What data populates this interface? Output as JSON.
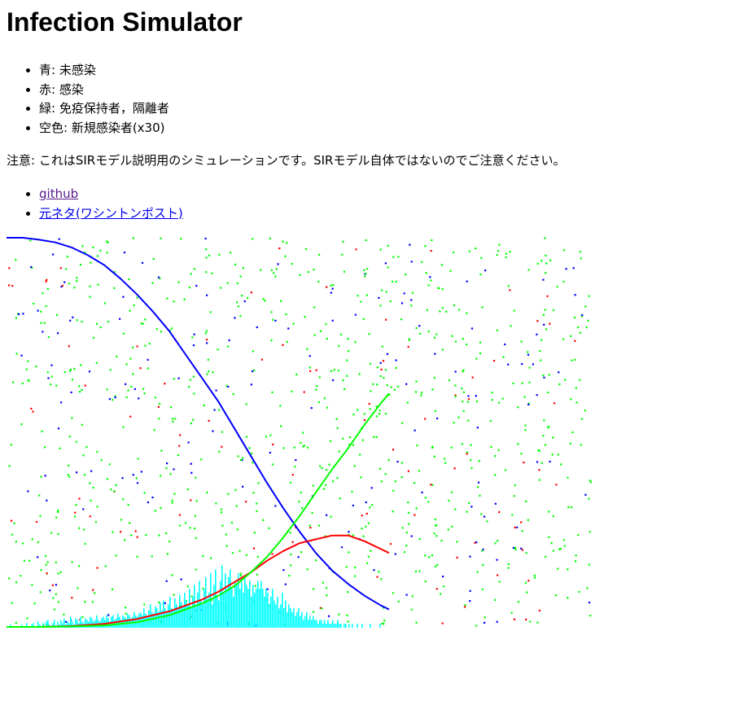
{
  "title": "Infection Simulator",
  "legend": [
    {
      "label": "青: 未感染",
      "color": "#0000ff"
    },
    {
      "label": "赤: 感染",
      "color": "#ff0000"
    },
    {
      "label": "緑: 免疫保持者，隔離者",
      "color": "#00ff00"
    },
    {
      "label": "空色: 新規感染者(x30)",
      "color": "#00ffff"
    }
  ],
  "note": "注意: これはSIRモデル説明用のシミュレーションです。SIRモデル自体ではないのでご注意ください。",
  "links": [
    {
      "label": "github"
    },
    {
      "label": "元ネタ(ワシントンポスト)"
    }
  ],
  "colors": {
    "uninfected": "#0000ff",
    "infected": "#ff0000",
    "recovered": "#00ff00",
    "new_infections": "#00ffff"
  },
  "chart_data": {
    "type": "line",
    "title": "",
    "xlabel": "",
    "ylabel": "",
    "ylim": [
      0,
      1
    ],
    "grid": false,
    "series": [
      {
        "key": "uninfected",
        "color": "#0000ff",
        "x": [
          0,
          20,
          40,
          60,
          80,
          100,
          120,
          140,
          160,
          180,
          200,
          220,
          240,
          260,
          280,
          300,
          320,
          340,
          360,
          380,
          400,
          420,
          440,
          460,
          470
        ],
        "y": [
          1.0,
          1.0,
          0.995,
          0.988,
          0.975,
          0.955,
          0.93,
          0.895,
          0.855,
          0.81,
          0.76,
          0.7,
          0.64,
          0.58,
          0.51,
          0.44,
          0.37,
          0.305,
          0.245,
          0.19,
          0.145,
          0.11,
          0.08,
          0.055,
          0.045
        ]
      },
      {
        "key": "infected",
        "color": "#ff0000",
        "x": [
          0,
          40,
          80,
          120,
          160,
          200,
          240,
          260,
          280,
          300,
          320,
          340,
          360,
          380,
          400,
          420,
          440,
          460,
          470
        ],
        "y": [
          0.0,
          0.0,
          0.002,
          0.008,
          0.02,
          0.04,
          0.07,
          0.09,
          0.115,
          0.14,
          0.17,
          0.195,
          0.215,
          0.225,
          0.235,
          0.235,
          0.22,
          0.2,
          0.19
        ]
      },
      {
        "key": "recovered",
        "color": "#00ff00",
        "x": [
          0,
          40,
          80,
          120,
          160,
          200,
          240,
          260,
          280,
          300,
          320,
          340,
          360,
          380,
          400,
          420,
          440,
          460,
          470
        ],
        "y": [
          0.0,
          0.0,
          0.001,
          0.004,
          0.012,
          0.03,
          0.06,
          0.08,
          0.105,
          0.14,
          0.18,
          0.23,
          0.285,
          0.345,
          0.405,
          0.46,
          0.52,
          0.575,
          0.6
        ]
      }
    ],
    "new_infections": {
      "key": "new_infections",
      "color": "#00ffff",
      "x_start": 0,
      "x_step": 2,
      "values": [
        0.004,
        0.0,
        0.008,
        0.0,
        0.004,
        0.0,
        0.0,
        0.0,
        0.004,
        0.008,
        0.0,
        0.0,
        0.012,
        0.004,
        0.0,
        0.008,
        0.012,
        0.0,
        0.004,
        0.016,
        0.008,
        0.0,
        0.012,
        0.004,
        0.016,
        0.02,
        0.008,
        0.004,
        0.012,
        0.02,
        0.004,
        0.016,
        0.008,
        0.02,
        0.012,
        0.024,
        0.008,
        0.016,
        0.012,
        0.028,
        0.016,
        0.008,
        0.024,
        0.02,
        0.012,
        0.028,
        0.016,
        0.012,
        0.024,
        0.02,
        0.016,
        0.028,
        0.024,
        0.016,
        0.02,
        0.032,
        0.02,
        0.016,
        0.024,
        0.028,
        0.02,
        0.032,
        0.024,
        0.016,
        0.028,
        0.032,
        0.02,
        0.024,
        0.036,
        0.028,
        0.02,
        0.032,
        0.028,
        0.024,
        0.036,
        0.032,
        0.024,
        0.028,
        0.04,
        0.032,
        0.028,
        0.036,
        0.04,
        0.032,
        0.05,
        0.036,
        0.028,
        0.045,
        0.06,
        0.04,
        0.036,
        0.055,
        0.05,
        0.04,
        0.065,
        0.045,
        0.07,
        0.05,
        0.04,
        0.06,
        0.08,
        0.05,
        0.045,
        0.075,
        0.06,
        0.05,
        0.085,
        0.065,
        0.055,
        0.09,
        0.07,
        0.06,
        0.1,
        0.05,
        0.08,
        0.11,
        0.06,
        0.09,
        0.12,
        0.07,
        0.06,
        0.1,
        0.13,
        0.075,
        0.09,
        0.14,
        0.06,
        0.11,
        0.15,
        0.08,
        0.07,
        0.12,
        0.16,
        0.09,
        0.14,
        0.1,
        0.13,
        0.15,
        0.1,
        0.08,
        0.12,
        0.11,
        0.14,
        0.1,
        0.12,
        0.09,
        0.13,
        0.11,
        0.1,
        0.12,
        0.08,
        0.11,
        0.09,
        0.1,
        0.12,
        0.1,
        0.12,
        0.1,
        0.08,
        0.1,
        0.09,
        0.06,
        0.08,
        0.1,
        0.07,
        0.06,
        0.08,
        0.05,
        0.06,
        0.09,
        0.05,
        0.07,
        0.04,
        0.06,
        0.05,
        0.04,
        0.05,
        0.03,
        0.04,
        0.05,
        0.03,
        0.04,
        0.02,
        0.03,
        0.04,
        0.02,
        0.03,
        0.02,
        0.03,
        0.02,
        0.02,
        0.01,
        0.02,
        0.02,
        0.01,
        0.02,
        0.01,
        0.02,
        0.01,
        0.01,
        0.02,
        0.01,
        0.01,
        0.02,
        0.01,
        0.01,
        0.0,
        0.01,
        0.01,
        0.0,
        0.01,
        0.0,
        0.01,
        0.0,
        0.0,
        0.01,
        0.0,
        0.0,
        0.01,
        0.0,
        0.0,
        0.0,
        0.0,
        0.01,
        0.0,
        0.0,
        0.0,
        0.0,
        0.0,
        0.01,
        0.0,
        0.0,
        0.0,
        0.0,
        0.0,
        0.0,
        0.0
      ]
    },
    "population": {
      "count": 1100,
      "status_mix": {
        "uninfected": 0.15,
        "infected": 0.1,
        "recovered": 0.75
      }
    }
  }
}
